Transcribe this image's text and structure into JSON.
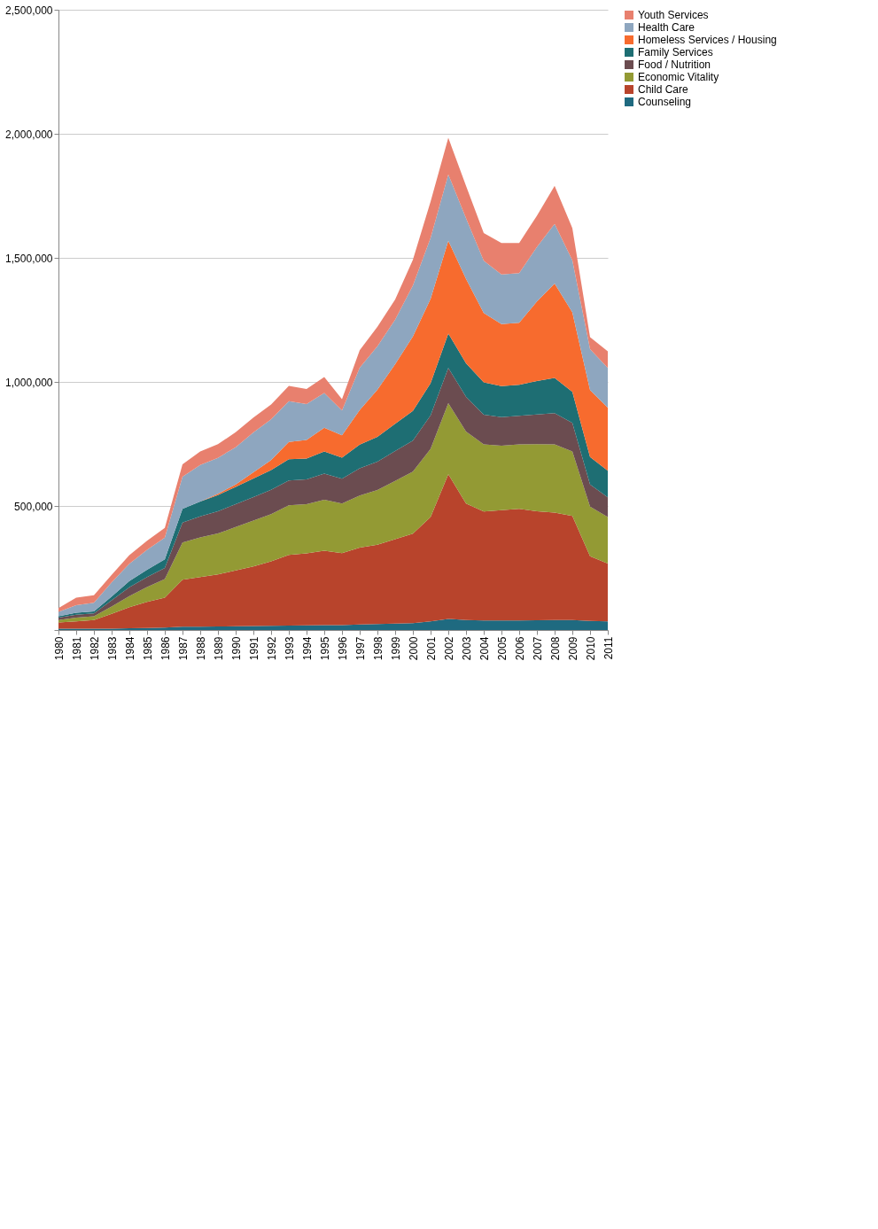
{
  "chart_data": {
    "type": "area",
    "stacked": true,
    "x": [
      1980,
      1981,
      1982,
      1983,
      1984,
      1985,
      1986,
      1987,
      1988,
      1989,
      1990,
      1991,
      1992,
      1993,
      1994,
      1995,
      1996,
      1997,
      1998,
      1999,
      2000,
      2001,
      2002,
      2003,
      2004,
      2005,
      2006,
      2007,
      2008,
      2009,
      2010,
      2011
    ],
    "xlim": [
      1980,
      2011
    ],
    "xticks": [
      1980,
      1981,
      1982,
      1983,
      1984,
      1985,
      1986,
      1987,
      1988,
      1989,
      1990,
      1991,
      1992,
      1993,
      1994,
      1995,
      1996,
      1997,
      1998,
      1999,
      2000,
      2001,
      2002,
      2003,
      2004,
      2005,
      2006,
      2007,
      2008,
      2009,
      2010,
      2011
    ],
    "ylim": [
      0,
      2500000
    ],
    "yticks": [
      {
        "value": 0,
        "label": null
      },
      {
        "value": 500000,
        "label": "500,000"
      },
      {
        "value": 1000000,
        "label": "1,000,000"
      },
      {
        "value": 1500000,
        "label": "1,500,000"
      },
      {
        "value": 2000000,
        "label": "2,000,000"
      },
      {
        "value": 2500000,
        "label": "2,500,000"
      }
    ],
    "grid": "y",
    "legend": "right",
    "series": [
      {
        "name": "Counseling",
        "color": "#1f6a80",
        "values": [
          5000,
          5000,
          5000,
          5000,
          7000,
          8000,
          10000,
          13000,
          13000,
          14000,
          15000,
          16000,
          17000,
          18000,
          19000,
          20000,
          20000,
          22000,
          24000,
          26000,
          28000,
          35000,
          45000,
          40000,
          38000,
          38000,
          38000,
          39000,
          40000,
          40000,
          37000,
          35000
        ]
      },
      {
        "name": "Child Care",
        "color": "#b8442c",
        "values": [
          25000,
          30000,
          35000,
          60000,
          85000,
          105000,
          120000,
          190000,
          200000,
          210000,
          225000,
          240000,
          260000,
          285000,
          290000,
          300000,
          290000,
          310000,
          320000,
          340000,
          360000,
          420000,
          583000,
          470000,
          440000,
          445000,
          450000,
          440000,
          433000,
          420000,
          260000,
          233000
        ]
      },
      {
        "name": "Economic Vitality",
        "color": "#939a34",
        "values": [
          10000,
          15000,
          15000,
          30000,
          45000,
          60000,
          75000,
          150000,
          160000,
          165000,
          175000,
          185000,
          190000,
          200000,
          198000,
          205000,
          200000,
          210000,
          220000,
          235000,
          250000,
          275000,
          286000,
          290000,
          270000,
          260000,
          260000,
          270000,
          275000,
          260000,
          200000,
          187000
        ]
      },
      {
        "name": "Food / Nutrition",
        "color": "#6b4c50",
        "values": [
          10000,
          12000,
          12000,
          25000,
          35000,
          40000,
          45000,
          80000,
          85000,
          90000,
          92000,
          95000,
          98000,
          100000,
          100000,
          105000,
          100000,
          110000,
          115000,
          120000,
          125000,
          135000,
          142000,
          140000,
          120000,
          115000,
          115000,
          120000,
          126000,
          115000,
          90000,
          80000
        ]
      },
      {
        "name": "Family Services",
        "color": "#1e6e73",
        "values": [
          5000,
          8000,
          8000,
          15000,
          25000,
          30000,
          35000,
          55000,
          60000,
          65000,
          70000,
          75000,
          80000,
          85000,
          84000,
          90000,
          85000,
          95000,
          100000,
          110000,
          120000,
          130000,
          139000,
          135000,
          130000,
          125000,
          125000,
          135000,
          142000,
          125000,
          110000,
          107000
        ]
      },
      {
        "name": "Homeless Services / Housing",
        "color": "#f76b2e",
        "values": [
          0,
          0,
          0,
          0,
          0,
          0,
          0,
          0,
          0,
          5000,
          10000,
          25000,
          40000,
          70000,
          75000,
          95000,
          90000,
          140000,
          190000,
          240000,
          300000,
          340000,
          374000,
          340000,
          280000,
          250000,
          250000,
          320000,
          380000,
          320000,
          270000,
          254000
        ]
      },
      {
        "name": "Health Care",
        "color": "#8ea6bf",
        "values": [
          18000,
          30000,
          35000,
          57000,
          70000,
          80000,
          87000,
          130000,
          147000,
          145000,
          150000,
          160000,
          164000,
          164000,
          145000,
          140000,
          100000,
          170000,
          175000,
          180000,
          205000,
          245000,
          267000,
          245000,
          210000,
          200000,
          200000,
          220000,
          241000,
          210000,
          165000,
          160000
        ]
      },
      {
        "name": "Youth Services",
        "color": "#e8806e",
        "values": [
          15000,
          30000,
          30000,
          30000,
          35000,
          37000,
          40000,
          50000,
          55000,
          55000,
          60000,
          60000,
          60000,
          62000,
          60000,
          65000,
          45000,
          71000,
          78000,
          81000,
          104000,
          147000,
          148000,
          130000,
          112000,
          127000,
          122000,
          126000,
          153000,
          130000,
          48000,
          67000
        ]
      }
    ]
  }
}
